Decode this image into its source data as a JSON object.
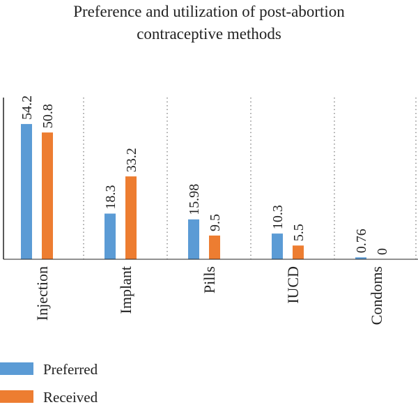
{
  "chart_data": {
    "type": "bar",
    "title_lines": [
      "Preference and utilization of post-abortion",
      "contraceptive methods"
    ],
    "categories": [
      "Injection",
      "Implant",
      "Pills",
      "IUCD",
      "Condoms"
    ],
    "series": [
      {
        "name": "Preferred",
        "values": [
          54.2,
          18.3,
          15.98,
          10.3,
          0.76
        ],
        "labels": [
          "54.2",
          "18.3",
          "15.98",
          "10.3",
          "0.76"
        ],
        "color": "#5b9bd5"
      },
      {
        "name": "Received",
        "values": [
          50.8,
          33.2,
          9.5,
          5.5,
          0
        ],
        "labels": [
          "50.8",
          "33.2",
          "9.5",
          "5.5",
          "0"
        ],
        "color": "#ed7d31"
      }
    ],
    "ylim": [
      0,
      60
    ],
    "grid": "vertical dotted separators",
    "legend": "bottom-left"
  }
}
